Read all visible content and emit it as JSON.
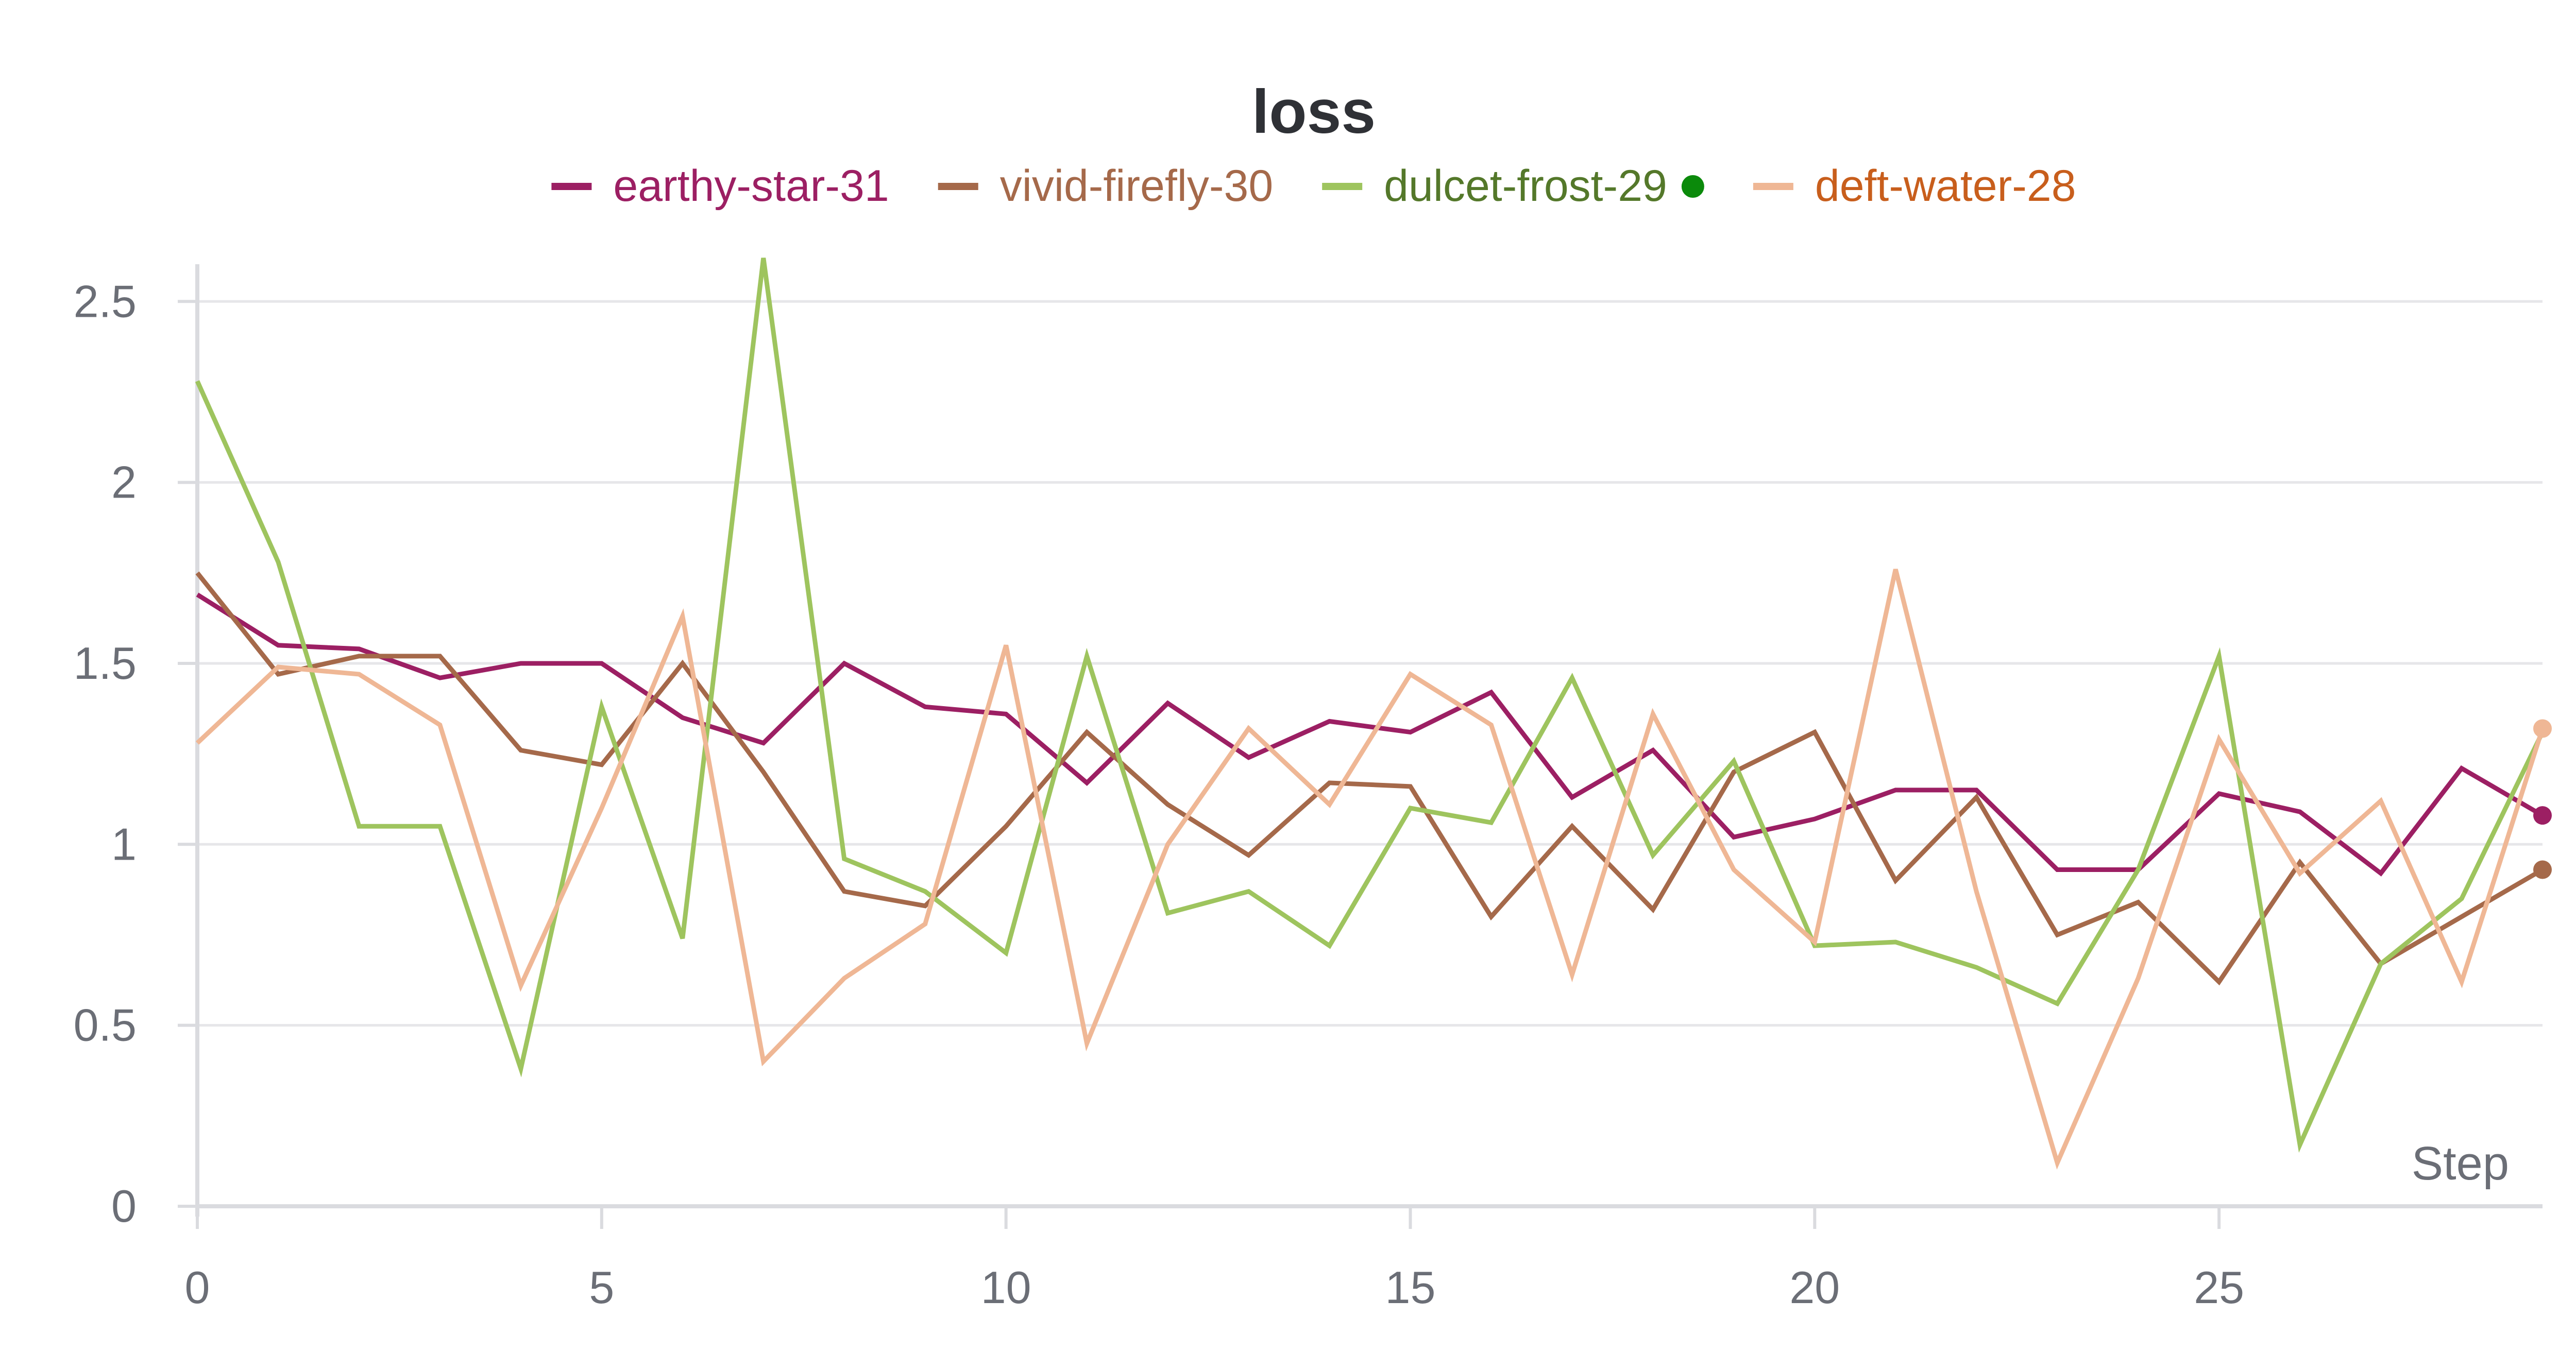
{
  "chart_data": {
    "type": "line",
    "title": "loss",
    "xlabel": "Step",
    "ylabel": "",
    "xlim": [
      0,
      29
    ],
    "ylim": [
      0,
      2.6
    ],
    "x_ticks": [
      0,
      5,
      10,
      15,
      20,
      25
    ],
    "y_ticks": [
      0,
      0.5,
      1,
      1.5,
      2,
      2.5
    ],
    "y_tick_labels": [
      "0",
      "0.5",
      "1",
      "1.5",
      "2",
      "2.5"
    ],
    "grid": true,
    "legend_position": "top-center",
    "x": [
      0,
      1,
      2,
      3,
      4,
      5,
      6,
      7,
      8,
      9,
      10,
      11,
      12,
      13,
      14,
      15,
      16,
      17,
      18,
      19,
      20,
      21,
      22,
      23,
      24,
      25,
      26,
      27,
      28,
      29
    ],
    "series": [
      {
        "name": "earthy-star-31",
        "color": "#9c1f63",
        "legend_text_color": "#9c1f63",
        "end_marker": true,
        "values": [
          1.69,
          1.55,
          1.54,
          1.46,
          1.5,
          1.5,
          1.35,
          1.28,
          1.5,
          1.38,
          1.36,
          1.17,
          1.39,
          1.24,
          1.34,
          1.31,
          1.42,
          1.13,
          1.26,
          1.02,
          1.07,
          1.15,
          1.15,
          0.93,
          0.93,
          1.14,
          1.09,
          0.92,
          1.21,
          1.08
        ]
      },
      {
        "name": "vivid-firefly-30",
        "color": "#a5694a",
        "legend_text_color": "#a5694a",
        "end_marker": true,
        "values": [
          1.75,
          1.47,
          1.52,
          1.52,
          1.26,
          1.22,
          1.5,
          1.2,
          0.87,
          0.83,
          1.05,
          1.31,
          1.11,
          0.97,
          1.17,
          1.16,
          0.8,
          1.05,
          0.82,
          1.2,
          1.31,
          0.9,
          1.13,
          0.75,
          0.84,
          0.62,
          0.95,
          0.67,
          0.8,
          0.93
        ]
      },
      {
        "name": "dulcet-frost-29",
        "color": "#9ec45e",
        "legend_text_color": "#54782a",
        "legend_dot_color": "#0b8a0b",
        "end_marker": false,
        "values": [
          2.28,
          1.78,
          1.05,
          1.05,
          0.38,
          1.38,
          0.74,
          2.62,
          0.96,
          0.87,
          0.7,
          1.52,
          0.81,
          0.87,
          0.72,
          1.1,
          1.06,
          1.46,
          0.97,
          1.23,
          0.72,
          0.73,
          0.66,
          0.56,
          0.93,
          1.52,
          0.17,
          0.67,
          0.85,
          1.31
        ]
      },
      {
        "name": "deft-water-28",
        "color": "#efb795",
        "legend_text_color": "#c85e1c",
        "end_marker": true,
        "values": [
          1.28,
          1.49,
          1.47,
          1.33,
          0.61,
          1.1,
          1.63,
          0.4,
          0.63,
          0.78,
          1.55,
          0.45,
          1.0,
          1.32,
          1.11,
          1.47,
          1.33,
          0.64,
          1.36,
          0.93,
          0.73,
          1.76,
          0.87,
          0.12,
          0.63,
          1.29,
          0.92,
          1.12,
          0.62,
          1.32
        ]
      }
    ]
  }
}
